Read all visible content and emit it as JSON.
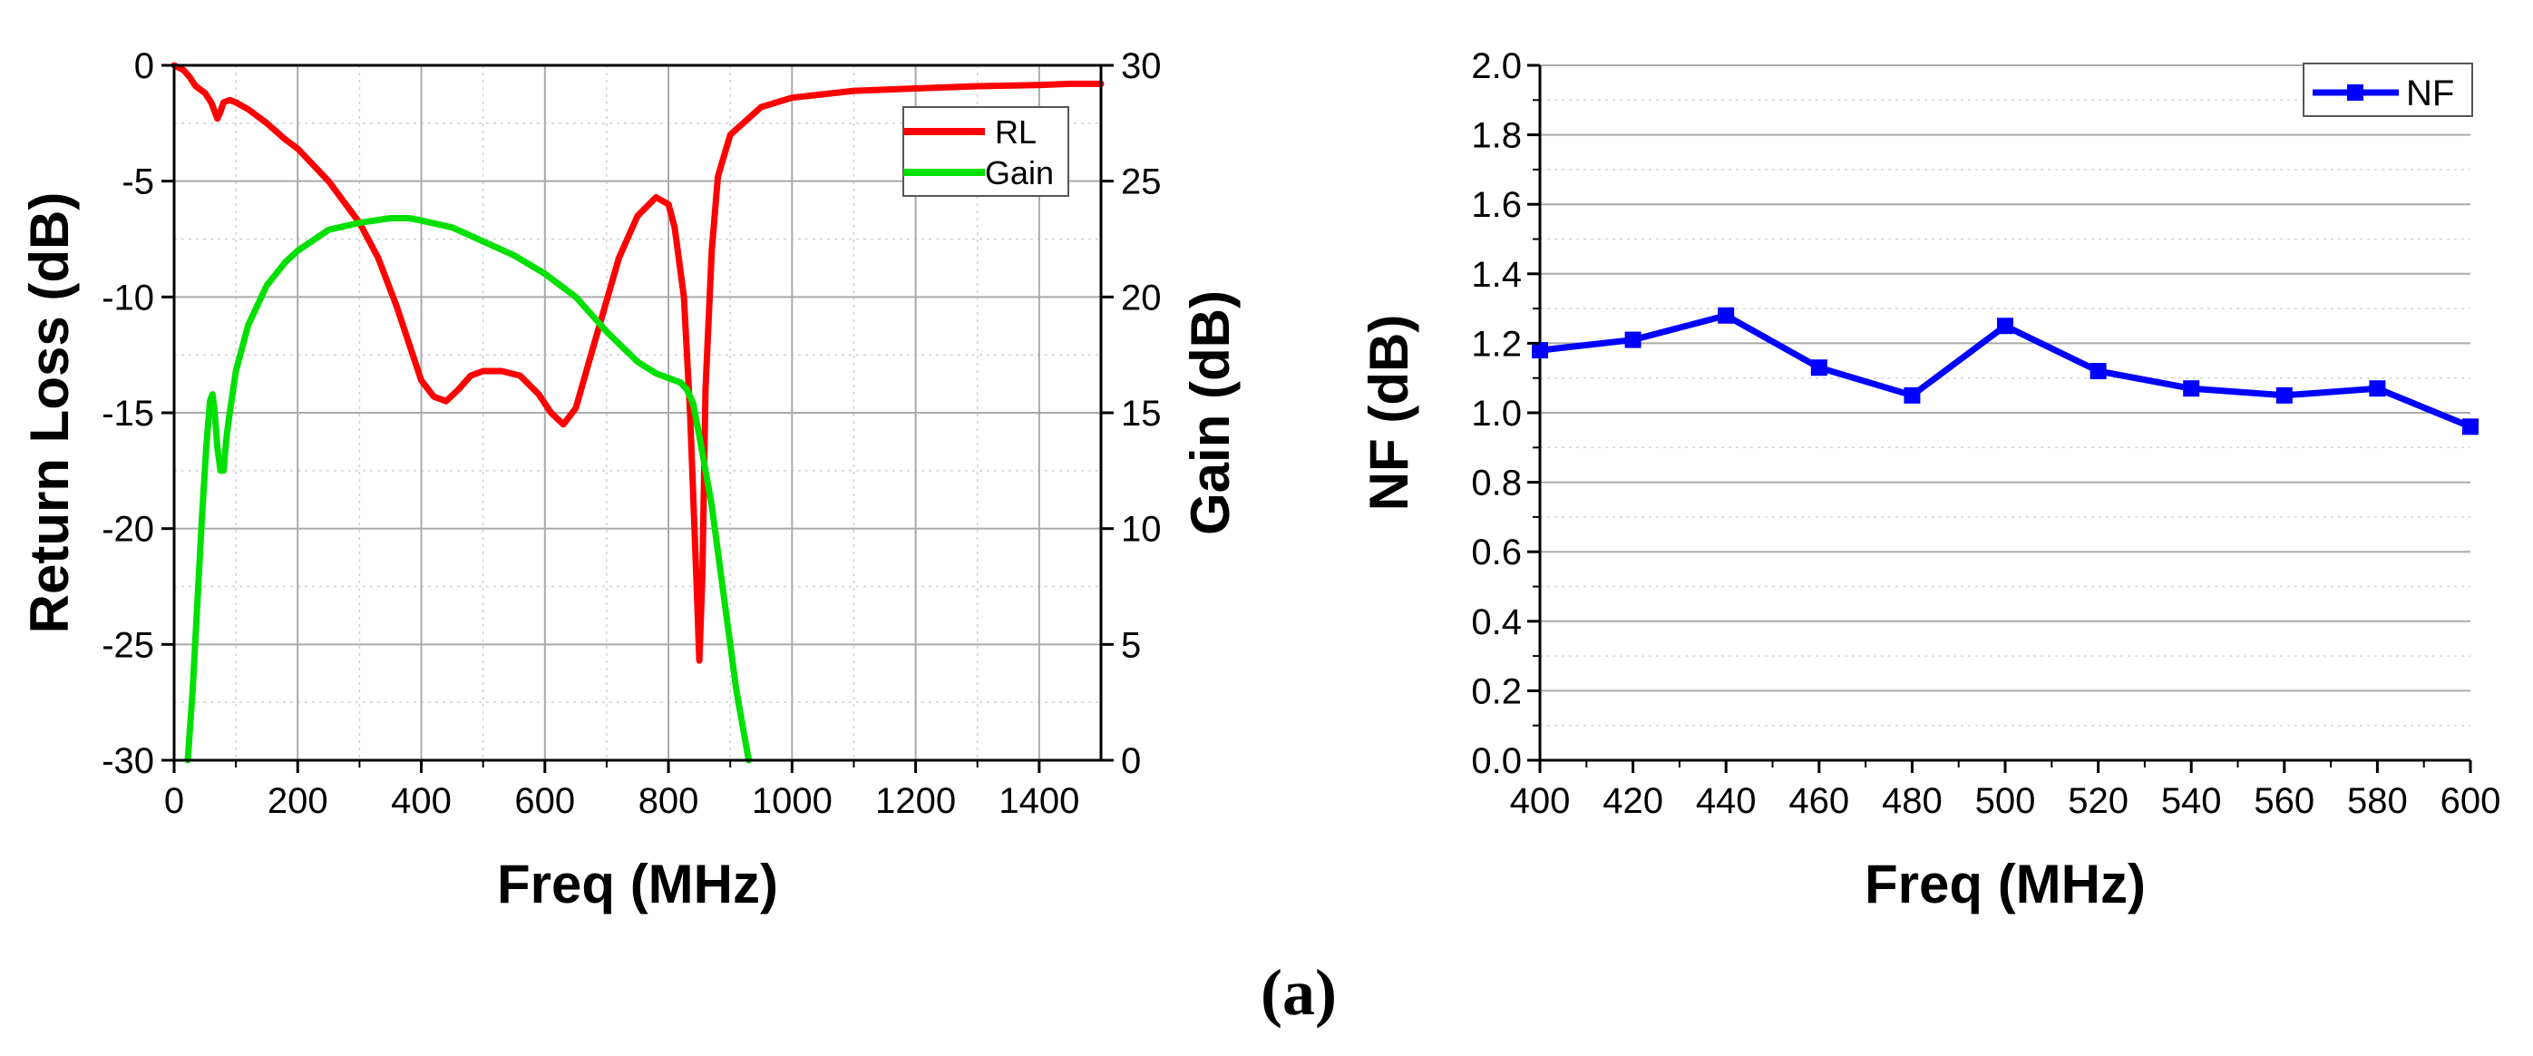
{
  "caption": "(a)",
  "colors": {
    "rl": "#ff0000",
    "gain": "#00e000",
    "nf": "#0000ff",
    "grid": "#999999"
  },
  "chart_data": [
    {
      "type": "line",
      "title": "",
      "xlabel": "Freq (MHz)",
      "ylabel": "Return Loss (dB)",
      "y2label": "Gain (dB)",
      "xlim": [
        0,
        1500
      ],
      "ylim": [
        -30,
        0
      ],
      "y2lim": [
        0,
        30
      ],
      "grid": true,
      "legend_position": "top-right",
      "x_ticks": [
        "0",
        "200",
        "400",
        "600",
        "800",
        "1000",
        "1200",
        "1400"
      ],
      "y_ticks": [
        "0",
        "-5",
        "-10",
        "-15",
        "-20",
        "-25",
        "-30"
      ],
      "y2_ticks": [
        "30",
        "25",
        "20",
        "15",
        "10",
        "5",
        "0"
      ],
      "series": [
        {
          "name": "RL",
          "axis": "left",
          "color_key": "rl",
          "x": [
            0,
            15,
            25,
            35,
            50,
            60,
            70,
            75,
            80,
            90,
            100,
            120,
            150,
            180,
            200,
            250,
            300,
            330,
            360,
            380,
            400,
            420,
            440,
            460,
            480,
            500,
            530,
            560,
            590,
            610,
            630,
            650,
            680,
            720,
            750,
            780,
            800,
            810,
            825,
            835,
            845,
            850,
            855,
            860,
            870,
            880,
            900,
            950,
            1000,
            1100,
            1200,
            1300,
            1400,
            1450,
            1500
          ],
          "y": [
            0,
            -0.2,
            -0.5,
            -0.9,
            -1.2,
            -1.6,
            -2.3,
            -2.0,
            -1.6,
            -1.5,
            -1.6,
            -1.9,
            -2.5,
            -3.2,
            -3.6,
            -5.0,
            -6.8,
            -8.3,
            -10.4,
            -12.0,
            -13.6,
            -14.3,
            -14.5,
            -14.0,
            -13.4,
            -13.2,
            -13.2,
            -13.4,
            -14.2,
            -15.0,
            -15.5,
            -14.8,
            -12.0,
            -8.3,
            -6.5,
            -5.7,
            -6.0,
            -7.0,
            -10.0,
            -15.0,
            -22.0,
            -25.7,
            -22.0,
            -14.0,
            -8.0,
            -4.8,
            -3.0,
            -1.8,
            -1.4,
            -1.1,
            -1.0,
            -0.9,
            -0.85,
            -0.8,
            -0.8
          ]
        },
        {
          "name": "Gain",
          "axis": "right",
          "color_key": "gain",
          "x": [
            22,
            30,
            38,
            45,
            52,
            58,
            62,
            65,
            70,
            75,
            80,
            85,
            90,
            100,
            120,
            150,
            180,
            200,
            250,
            300,
            350,
            380,
            400,
            450,
            500,
            550,
            600,
            650,
            700,
            750,
            780,
            800,
            820,
            830,
            840,
            850,
            870,
            890,
            910,
            930
          ],
          "y": [
            0,
            3.0,
            7.0,
            10.5,
            13.5,
            15.5,
            15.8,
            15.2,
            13.5,
            12.5,
            12.5,
            14.0,
            15.0,
            16.8,
            18.8,
            20.5,
            21.5,
            22.0,
            22.9,
            23.2,
            23.4,
            23.4,
            23.3,
            23.0,
            22.4,
            21.8,
            21.0,
            20.0,
            18.5,
            17.2,
            16.7,
            16.5,
            16.3,
            16.0,
            15.4,
            14.0,
            11.0,
            7.0,
            3.0,
            0
          ]
        }
      ]
    },
    {
      "type": "line",
      "title": "",
      "xlabel": "Freq (MHz)",
      "ylabel": "NF (dB)",
      "xlim": [
        400,
        600
      ],
      "ylim": [
        0.0,
        2.0
      ],
      "grid": true,
      "legend_position": "top-right",
      "x_ticks": [
        "400",
        "420",
        "440",
        "460",
        "480",
        "500",
        "520",
        "540",
        "560",
        "580",
        "600"
      ],
      "y_ticks": [
        "2.0",
        "1.8",
        "1.6",
        "1.4",
        "1.2",
        "1.0",
        "0.8",
        "0.6",
        "0.4",
        "0.2",
        "0.0"
      ],
      "series": [
        {
          "name": "NF",
          "axis": "left",
          "color_key": "nf",
          "x": [
            400,
            420,
            440,
            460,
            480,
            500,
            520,
            540,
            560,
            580,
            600
          ],
          "y": [
            1.18,
            1.21,
            1.28,
            1.13,
            1.05,
            1.25,
            1.12,
            1.07,
            1.05,
            1.07,
            0.96
          ]
        }
      ]
    }
  ]
}
